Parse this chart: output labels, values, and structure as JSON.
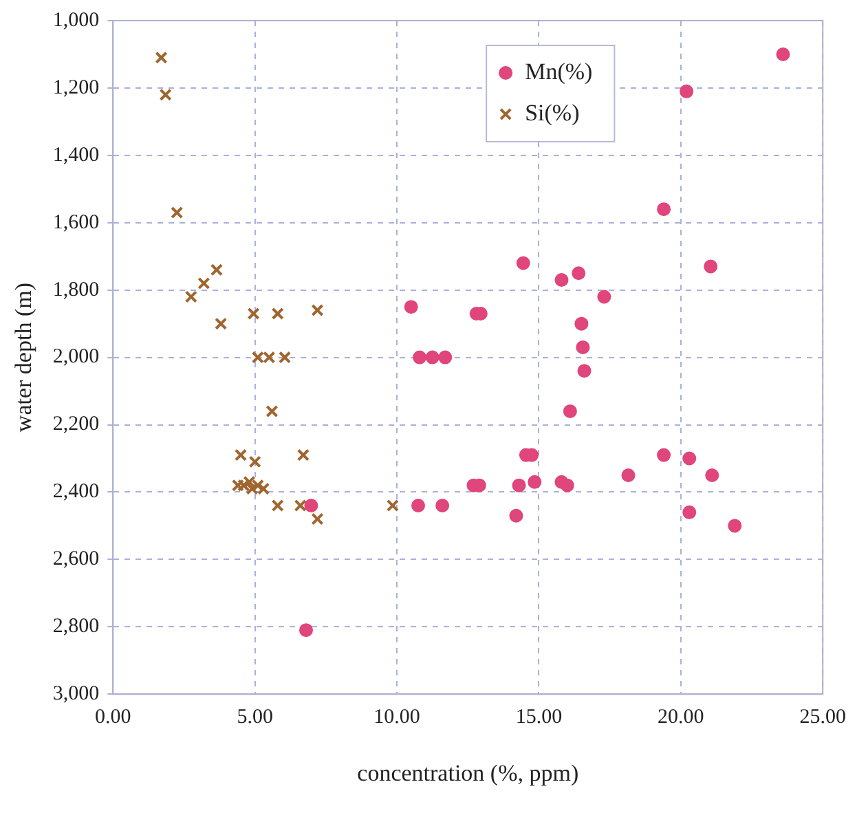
{
  "chart_data": {
    "type": "scatter",
    "xlabel": "concentration (%, ppm)",
    "ylabel": "water depth (m)",
    "xlim": [
      0,
      25
    ],
    "xticks": [
      {
        "value": 0,
        "label": "0.00"
      },
      {
        "value": 5,
        "label": "5.00"
      },
      {
        "value": 10,
        "label": "10.00"
      },
      {
        "value": 15,
        "label": "15.00"
      },
      {
        "value": 20,
        "label": "20.00"
      },
      {
        "value": 25,
        "label": "25.00"
      }
    ],
    "ylim": [
      3000,
      1000
    ],
    "yticks": [
      {
        "value": 1000,
        "label": "1,000"
      },
      {
        "value": 1200,
        "label": "1,200"
      },
      {
        "value": 1400,
        "label": "1,400"
      },
      {
        "value": 1600,
        "label": "1,600"
      },
      {
        "value": 1800,
        "label": "1,800"
      },
      {
        "value": 2000,
        "label": "2,000"
      },
      {
        "value": 2200,
        "label": "2,200"
      },
      {
        "value": 2400,
        "label": "2,400"
      },
      {
        "value": 2600,
        "label": "2,600"
      },
      {
        "value": 2800,
        "label": "2,800"
      },
      {
        "value": 3000,
        "label": "3,000"
      }
    ],
    "grid": true,
    "legend": "top",
    "line_style": "dashed",
    "series": [
      {
        "name": "Mn(%)",
        "color": "#e0457b",
        "marker": "circle",
        "x": [
          23.6,
          20.2,
          19.4,
          21.05,
          14.45,
          16.4,
          15.8,
          17.3,
          10.5,
          12.8,
          12.95,
          16.5,
          16.55,
          10.8,
          11.25,
          11.7,
          16.6,
          16.1,
          14.55,
          14.75,
          19.4,
          20.3,
          18.15,
          21.1,
          12.7,
          12.9,
          14.3,
          14.85,
          15.8,
          16.0,
          10.75,
          11.6,
          14.2,
          20.3,
          21.9,
          6.98,
          6.8
        ],
        "values": [
          1100,
          1210,
          1560,
          1730,
          1720,
          1750,
          1770,
          1820,
          1850,
          1870,
          1870,
          1900,
          1970,
          2000,
          2000,
          2000,
          2040,
          2160,
          2290,
          2290,
          2290,
          2300,
          2350,
          2350,
          2380,
          2380,
          2380,
          2370,
          2370,
          2380,
          2440,
          2440,
          2470,
          2460,
          2500,
          2440,
          2810
        ]
      },
      {
        "name": "Si(%)",
        "color": "#a0652e",
        "marker": "cross",
        "x": [
          1.7,
          1.85,
          2.25,
          3.65,
          3.2,
          2.75,
          3.8,
          4.95,
          5.8,
          7.2,
          5.1,
          5.5,
          6.05,
          5.6,
          4.5,
          5.0,
          6.7,
          4.4,
          4.6,
          4.8,
          4.9,
          5.1,
          5.3,
          5.8,
          6.6,
          7.2,
          9.85
        ],
        "values": [
          1110,
          1220,
          1570,
          1740,
          1780,
          1820,
          1900,
          1870,
          1870,
          1860,
          2000,
          2000,
          2000,
          2160,
          2290,
          2310,
          2290,
          2380,
          2380,
          2370,
          2390,
          2380,
          2390,
          2440,
          2440,
          2480,
          2440
        ]
      }
    ]
  }
}
